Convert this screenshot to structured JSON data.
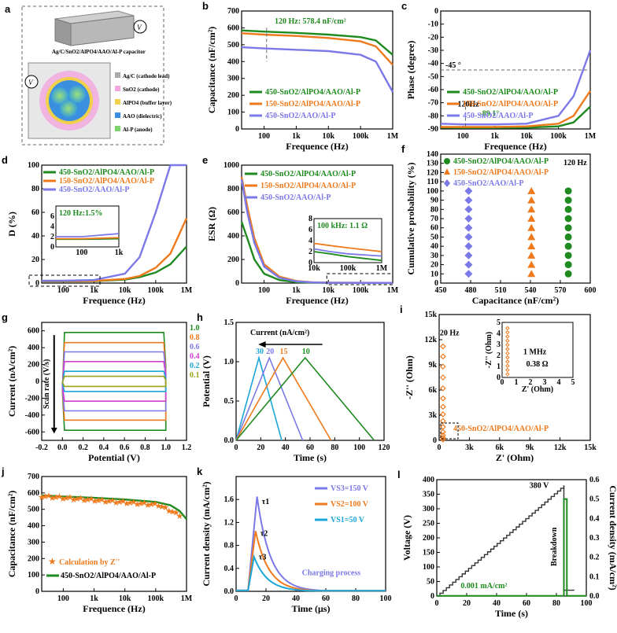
{
  "colors": {
    "green": "#1f8a1f",
    "orange": "#ee7a1d",
    "blue": "#7b78e8",
    "cyan": "#1aa6d8",
    "gray": "#666666"
  },
  "panel_a": {
    "label": "a",
    "device_title": "Ag/C/SnO2/AlPO4/AAO/Al-P capacitor",
    "legend": [
      "Ag/C (cathode lead)",
      "SnO2 (cathode)",
      "AlPO4 (buffer layer)",
      "AAO (dielectric)",
      "Al-P (anode)"
    ],
    "meter_symbol": "V"
  },
  "chart_data": [
    {
      "panel": "b",
      "type": "line",
      "xscale": "log",
      "xlabel": "Frequence (Hz)",
      "ylabel": "Capacitance (nF/cm²)",
      "xlim": [
        20,
        1000000
      ],
      "ylim": [
        0,
        700
      ],
      "xticks": [
        "100",
        "1k",
        "10k",
        "100k",
        "1M"
      ],
      "yticks": [
        "0",
        "100",
        "200",
        "300",
        "400",
        "500",
        "600",
        "700"
      ],
      "annotation": "120 Hz: 578.4 nF/cm²",
      "x": [
        20,
        100,
        1000,
        10000,
        100000,
        300000,
        1000000
      ],
      "series": [
        {
          "name": "450-SnO2/AlPO4/AAO/Al-P",
          "color": "green",
          "values": [
            585,
            578,
            570,
            560,
            545,
            525,
            440
          ]
        },
        {
          "name": "150-SnO2/AlPO4/AAO/Al-P",
          "color": "orange",
          "values": [
            568,
            560,
            552,
            540,
            520,
            490,
            380
          ]
        },
        {
          "name": "450-SnO2/AAO/Al-P",
          "color": "blue",
          "values": [
            485,
            478,
            470,
            462,
            440,
            400,
            220
          ]
        }
      ]
    },
    {
      "panel": "c",
      "type": "line",
      "xscale": "log",
      "xlabel": "Frequence (Hz)",
      "ylabel": "Phase (degree)",
      "xlim": [
        20,
        1000000
      ],
      "ylim": [
        -90,
        0
      ],
      "xticks": [
        "100",
        "1k",
        "10k",
        "100k",
        "1M"
      ],
      "yticks": [
        "-90",
        "-80",
        "-70",
        "-60",
        "-50",
        "-40",
        "-30",
        "-20",
        "-10",
        "0"
      ],
      "annotations": [
        "-89.1°",
        "120Hz",
        "-45 °"
      ],
      "x": [
        20,
        100,
        1000,
        10000,
        100000,
        300000,
        1000000
      ],
      "series": [
        {
          "name": "450-SnO2/AlPO4/AAO/Al-P",
          "color": "green",
          "values": [
            -89,
            -89.1,
            -89.1,
            -89,
            -88,
            -85,
            -73
          ]
        },
        {
          "name": "150-SnO2/AlPO4/AAO/Al-P",
          "color": "orange",
          "values": [
            -88.5,
            -88.5,
            -88.5,
            -88,
            -86,
            -80,
            -61
          ]
        },
        {
          "name": "450-SnO2/AAO/Al-P",
          "color": "blue",
          "values": [
            -86,
            -86.5,
            -86.5,
            -86,
            -80,
            -65,
            -30
          ]
        }
      ]
    },
    {
      "panel": "d",
      "type": "line",
      "xscale": "log",
      "xlabel": "Frequence (Hz)",
      "ylabel": "D (%)",
      "xlim": [
        20,
        1000000
      ],
      "ylim": [
        0,
        100
      ],
      "xticks": [
        "100",
        "1k",
        "10k",
        "100k",
        "1M"
      ],
      "yticks": [
        "0",
        "20",
        "40",
        "60",
        "80",
        "100"
      ],
      "inset": {
        "annotation": "120 Hz:1.5%",
        "xticks": [
          "100",
          "1k"
        ],
        "yticks": [
          "0",
          "2",
          "4",
          "6"
        ]
      },
      "x": [
        20,
        100,
        1000,
        10000,
        30000,
        100000,
        300000,
        1000000
      ],
      "series": [
        {
          "name": "450-SnO2/AlPO4/AAO/Al-P",
          "color": "green",
          "values": [
            1.5,
            1.5,
            1.6,
            3,
            5,
            9,
            16,
            31
          ]
        },
        {
          "name": "150-SnO2/AlPO4/AAO/Al-P",
          "color": "orange",
          "values": [
            1.6,
            1.6,
            1.8,
            3.5,
            6,
            13,
            25,
            55
          ]
        },
        {
          "name": "450-SnO2/AAO/Al-P",
          "color": "blue",
          "values": [
            2,
            2,
            2.6,
            8,
            22,
            60,
            100,
            100
          ]
        }
      ]
    },
    {
      "panel": "e",
      "type": "line",
      "xscale": "log",
      "xlabel": "Frequence (Hz)",
      "ylabel": "ESR (Ω)",
      "xlim": [
        20,
        1000000
      ],
      "ylim": [
        0,
        1000
      ],
      "xticks": [
        "100",
        "1k",
        "10k",
        "100k",
        "1M"
      ],
      "yticks": [
        "0",
        "200",
        "400",
        "600",
        "800",
        "1000"
      ],
      "inset": {
        "annotation": "100 kHz: 1.1 Ω",
        "xticks": [
          "10k",
          "100k",
          "1M"
        ],
        "yticks": [
          "0",
          "2",
          "4",
          "6",
          "8"
        ]
      },
      "x": [
        20,
        30,
        50,
        100,
        300,
        1000,
        3000,
        10000,
        100000,
        1000000
      ],
      "series": [
        {
          "name": "450-SnO2/AlPO4/AAO/Al-P",
          "color": "green",
          "values": [
            520,
            380,
            200,
            80,
            25,
            8,
            4,
            2,
            1.1,
            0.4
          ]
        },
        {
          "name": "150-SnO2/AlPO4/AAO/Al-P",
          "color": "orange",
          "values": [
            900,
            650,
            380,
            160,
            55,
            18,
            7,
            3.5,
            2.7,
            2
          ]
        },
        {
          "name": "450-SnO2/AAO/Al-P",
          "color": "blue",
          "values": [
            880,
            600,
            340,
            140,
            45,
            15,
            6,
            2.5,
            1.6,
            1.2
          ]
        }
      ]
    },
    {
      "panel": "f",
      "type": "scatter",
      "xlabel": "Capacitance (nF/cm²)",
      "ylabel": "Cumulative probability (%)",
      "xlim": [
        450,
        600
      ],
      "ylim": [
        0,
        140
      ],
      "xticks": [
        "450",
        "480",
        "510",
        "540",
        "570",
        "600"
      ],
      "yticks": [
        "0",
        "10",
        "20",
        "30",
        "40",
        "50",
        "60",
        "70",
        "80",
        "90",
        "100",
        "110",
        "120",
        "130",
        "140"
      ],
      "annotation": "120 Hz",
      "series": [
        {
          "name": "450-SnO2/AlPO4/AAO/Al-P",
          "color": "green",
          "marker": "circle",
          "x": [
            578,
            578,
            578,
            578,
            578,
            578,
            578,
            578,
            578,
            578
          ],
          "y": [
            10,
            20,
            30,
            40,
            50,
            60,
            70,
            80,
            90,
            100
          ]
        },
        {
          "name": "150-SnO2/AlPO4/AAO/Al-P",
          "color": "orange",
          "marker": "triangle",
          "x": [
            541,
            541,
            541,
            541,
            541,
            541,
            541,
            541,
            541,
            541
          ],
          "y": [
            10,
            20,
            30,
            40,
            50,
            60,
            70,
            80,
            90,
            100
          ]
        },
        {
          "name": "450-SnO2/AAO/Al-P",
          "color": "blue",
          "marker": "diamond",
          "x": [
            478,
            478,
            478,
            478,
            478,
            478,
            478,
            478,
            478,
            478
          ],
          "y": [
            10,
            20,
            30,
            40,
            50,
            60,
            70,
            80,
            90,
            100
          ]
        }
      ]
    },
    {
      "panel": "g",
      "type": "line",
      "xlabel": "Potential (V)",
      "ylabel": "Current (nA/cm²)",
      "xlim": [
        -0.2,
        1.2
      ],
      "ylim": [
        -700,
        700
      ],
      "xticks": [
        "-0.2",
        "0.0",
        "0.2",
        "0.4",
        "0.6",
        "0.8",
        "1.0",
        "1.2"
      ],
      "yticks": [
        "-600",
        "-400",
        "-200",
        "0",
        "200",
        "400",
        "600"
      ],
      "annotation": "Scan rate (V/s)",
      "series": [
        {
          "name": "1.0",
          "color": "green",
          "level": 580
        },
        {
          "name": "0.8",
          "color": "orange",
          "level": 460
        },
        {
          "name": "0.6",
          "color": "blue",
          "level": 350
        },
        {
          "name": "0.4",
          "color": "#d03fd0",
          "level": 235
        },
        {
          "name": "0.2",
          "color": "cyan",
          "level": 120
        },
        {
          "name": "0.1",
          "color": "#9aa21a",
          "level": 60
        }
      ]
    },
    {
      "panel": "h",
      "type": "line",
      "xlabel": "Time (s)",
      "ylabel": "Potential (V)",
      "xlim": [
        0,
        120
      ],
      "ylim": [
        0,
        1.5
      ],
      "xticks": [
        "0",
        "20",
        "40",
        "60",
        "80",
        "100",
        "120"
      ],
      "yticks": [
        "0.0",
        "0.5",
        "1.0",
        "1.5"
      ],
      "annotation": "Current (nA/cm²)",
      "series": [
        {
          "name": "30",
          "color": "cyan",
          "x": [
            0,
            18.5,
            37
          ],
          "y": [
            0,
            1.05,
            0
          ]
        },
        {
          "name": "20",
          "color": "blue",
          "x": [
            0,
            27,
            54
          ],
          "y": [
            0,
            1.05,
            0
          ]
        },
        {
          "name": "15",
          "color": "orange",
          "x": [
            0,
            38,
            77
          ],
          "y": [
            0,
            1.05,
            0
          ]
        },
        {
          "name": "10",
          "color": "green",
          "x": [
            0,
            56,
            112
          ],
          "y": [
            0,
            1.05,
            0
          ]
        }
      ]
    },
    {
      "panel": "i",
      "type": "line",
      "xlabel": "Z' (Ohm)",
      "ylabel": "-Z'' (Ohm)",
      "xlim": [
        0,
        15000
      ],
      "ylim": [
        0,
        15000
      ],
      "xticks": [
        "0",
        "3k",
        "6k",
        "9k",
        "12k",
        "15k"
      ],
      "yticks": [
        "0",
        "3k",
        "6k",
        "9k",
        "12k",
        "15k"
      ],
      "annotations": [
        "20 Hz",
        "1 MHz",
        "0.38 Ω",
        "450-SnO2/AlPO4/AAO/Al-P"
      ],
      "inset": {
        "xlabel": "Z' (Ohm)",
        "ylabel": "-Z'' (Ohm)",
        "xticks": [
          "0",
          "1",
          "2",
          "3",
          "4",
          "5"
        ],
        "yticks": [
          "0",
          "1",
          "2",
          "3",
          "4",
          "5"
        ]
      },
      "series": [
        {
          "name": "450-SnO2/AlPO4/AAO/Al-P",
          "color": "orange",
          "x": [
            380,
            380,
            380,
            380,
            380,
            380,
            380,
            380,
            380,
            380,
            380,
            380,
            380,
            380
          ],
          "y": [
            100,
            300,
            600,
            1000,
            1600,
            2300,
            3100,
            4000,
            5000,
            6200,
            7500,
            8800,
            10000,
            11200
          ]
        }
      ]
    },
    {
      "panel": "j",
      "type": "line",
      "xscale": "log",
      "xlabel": "Frequence (Hz)",
      "ylabel": "Capacitance (nF/cm²)",
      "xlim": [
        20,
        1000000
      ],
      "ylim": [
        0,
        700
      ],
      "xticks": [
        "100",
        "1k",
        "10k",
        "100k",
        "1M"
      ],
      "yticks": [
        "0",
        "100",
        "200",
        "300",
        "400",
        "500",
        "600",
        "700"
      ],
      "x": [
        20,
        100,
        1000,
        10000,
        100000,
        300000,
        600000,
        1000000
      ],
      "series": [
        {
          "name": "Calculation by Z''",
          "color": "orange",
          "marker": "star",
          "values": [
            580,
            578,
            572,
            562,
            535,
            500,
            465,
            440
          ]
        },
        {
          "name": "450-SnO2/AlPO4/AAO/Al-P",
          "color": "green",
          "values": [
            585,
            578,
            570,
            560,
            545,
            525,
            490,
            440
          ]
        }
      ]
    },
    {
      "panel": "k",
      "type": "line",
      "xlabel": "Time (μs)",
      "ylabel": "Current density (mA/cm²)",
      "xlim": [
        0,
        100
      ],
      "ylim": [
        0,
        2.0
      ],
      "xticks": [
        "0",
        "20",
        "40",
        "60",
        "80",
        "100"
      ],
      "yticks": [
        "0.0",
        "0.4",
        "0.8",
        "1.2",
        "1.6"
      ],
      "annotations": [
        "τ1",
        "τ2",
        "τ3",
        "Charging process"
      ],
      "series": [
        {
          "name": "VS3=150 V",
          "color": "blue",
          "peak": 1.65,
          "t_peak": 14
        },
        {
          "name": "VS2=100 V",
          "color": "orange",
          "peak": 1.05,
          "t_peak": 13
        },
        {
          "name": "VS1=50 V",
          "color": "cyan",
          "peak": 0.6,
          "t_peak": 12
        }
      ]
    },
    {
      "panel": "l",
      "type": "line",
      "xlabel": "Time (s)",
      "ylabel": "Voltage (V)",
      "ylabel_right": "Current density (mA/cm²)",
      "xlim": [
        0,
        100
      ],
      "ylim": [
        0,
        400
      ],
      "ylim_right": [
        0,
        0.6
      ],
      "xticks": [
        "0",
        "20",
        "40",
        "60",
        "80",
        "100"
      ],
      "yticks": [
        "0",
        "50",
        "100",
        "150",
        "200",
        "250",
        "300",
        "350",
        "400"
      ],
      "yticks_right": [
        "0.0",
        "0.1",
        "0.2",
        "0.3",
        "0.4",
        "0.5",
        "0.6"
      ],
      "annotations": [
        "380 V",
        "Breakdown",
        "0.001 mA/cm²"
      ],
      "series": [
        {
          "name": "Voltage",
          "color": "#333333",
          "x": [
            0,
            85,
            85,
            100
          ],
          "y": [
            0,
            380,
            20,
            20
          ]
        },
        {
          "name": "Current density",
          "color": "green",
          "x": [
            0,
            85,
            85,
            87,
            87,
            100
          ],
          "y": [
            0.001,
            0.001,
            0.5,
            0.5,
            0.001,
            0.001
          ]
        }
      ]
    }
  ]
}
